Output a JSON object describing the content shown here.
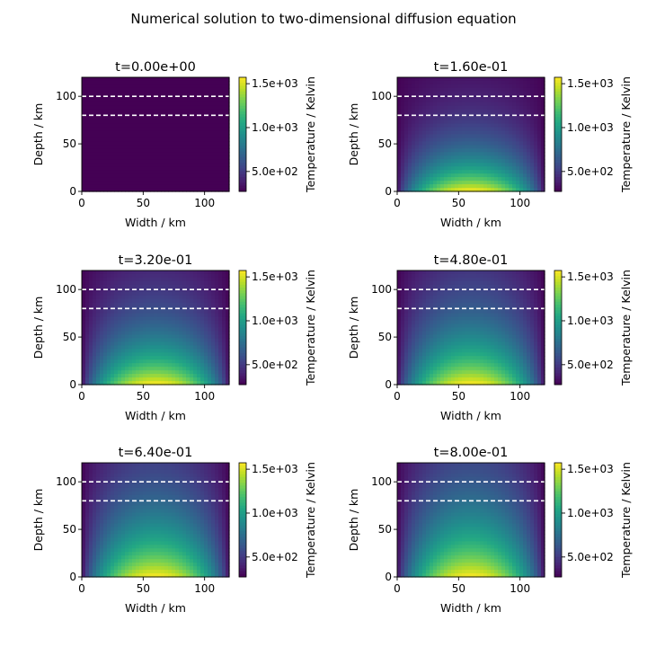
{
  "chart_data": {
    "type": "heatmap",
    "title": "Numerical solution to two-dimensional diffusion equation",
    "colorbar": {
      "label": "Temperature / Kelvin",
      "ticks": [
        500,
        1000,
        1500
      ],
      "tick_labels": [
        "5.0e+02",
        "1.0e+03",
        "1.5e+03"
      ],
      "range": [
        273,
        1573
      ],
      "colormap": "viridis"
    },
    "xlabel": "Width / km",
    "ylabel": "Depth / km",
    "xlim": [
      0,
      120
    ],
    "ylim": [
      0,
      120
    ],
    "xticks": [
      0,
      50,
      100
    ],
    "yticks": [
      0,
      50,
      100
    ],
    "dashed_lines_y": [
      80,
      100
    ],
    "panels": [
      {
        "title": "t=0.00e+00",
        "t": 0.0
      },
      {
        "title": "t=1.60e-01",
        "t": 0.16
      },
      {
        "title": "t=3.20e-01",
        "t": 0.32
      },
      {
        "title": "t=4.80e-01",
        "t": 0.48
      },
      {
        "title": "t=6.40e-01",
        "t": 0.64
      },
      {
        "title": "t=8.00e-01",
        "t": 0.8
      }
    ]
  }
}
